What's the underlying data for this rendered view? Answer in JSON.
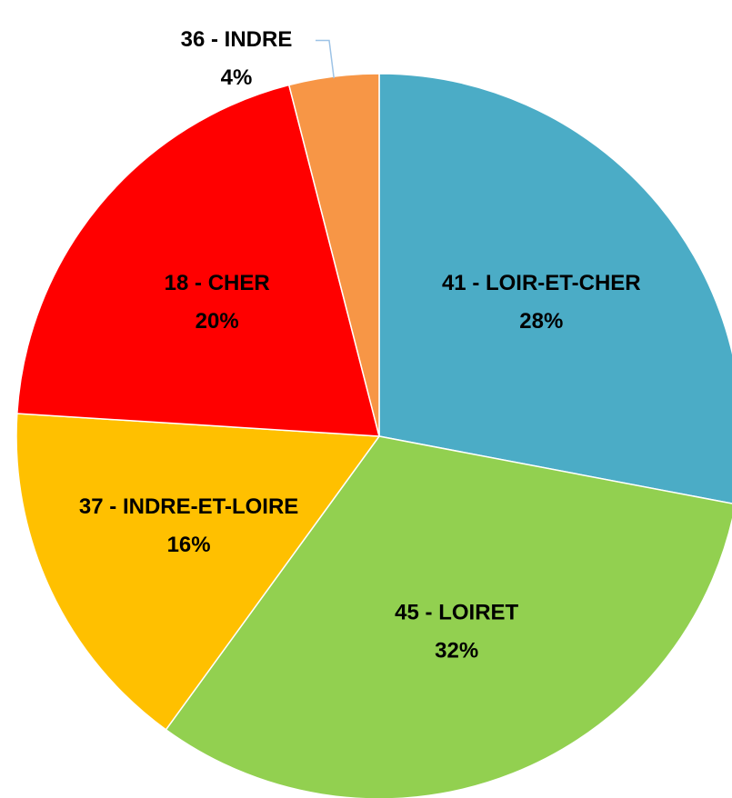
{
  "chart_data": {
    "type": "pie",
    "categories": [
      "41 - LOIR-ET-CHER",
      "45 - LOIRET",
      "37 - INDRE-ET-LOIRE",
      "18 - CHER",
      "36 - INDRE"
    ],
    "values": [
      28,
      32,
      16,
      20,
      4
    ],
    "value_labels": [
      "28%",
      "32%",
      "16%",
      "20%",
      "4%"
    ],
    "colors": [
      "#4bacc6",
      "#92d050",
      "#ffc000",
      "#ff0000",
      "#f79646"
    ]
  }
}
